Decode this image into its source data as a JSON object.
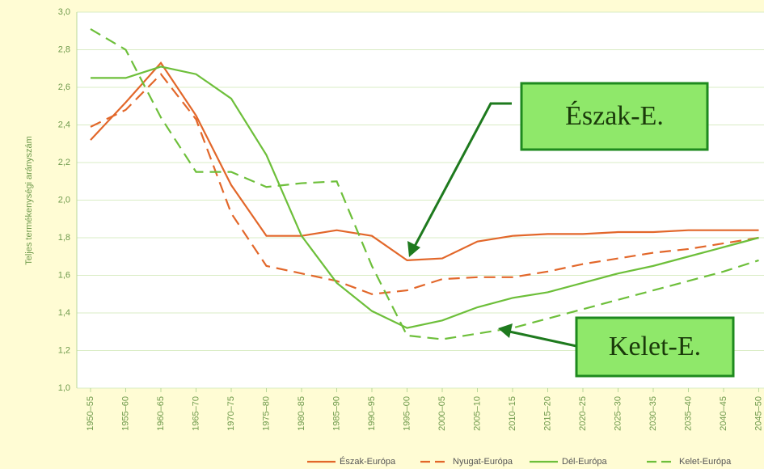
{
  "chart_data": {
    "type": "line",
    "y_label": "Teljes termékenységi arányszám",
    "categories": [
      "1950–55",
      "1955–60",
      "1960–65",
      "1965–70",
      "1970–75",
      "1975–80",
      "1980–85",
      "1985–90",
      "1990–95",
      "1995–00",
      "2000–05",
      "2005–10",
      "2010–15",
      "2015–20",
      "2020–25",
      "2025–30",
      "2030–35",
      "2035–40",
      "2040–45",
      "2045–50"
    ],
    "series": [
      {
        "name": "Észak-Európa",
        "color": "#e2672a",
        "style": "solid",
        "values": [
          2.32,
          2.52,
          2.73,
          2.45,
          2.08,
          1.81,
          1.81,
          1.84,
          1.81,
          1.68,
          1.69,
          1.78,
          1.81,
          1.82,
          1.82,
          1.83,
          1.83,
          1.84,
          1.84,
          1.84
        ]
      },
      {
        "name": "Nyugat-Európa",
        "color": "#e2672a",
        "style": "dashed",
        "values": [
          2.39,
          2.48,
          2.67,
          2.43,
          1.93,
          1.65,
          1.61,
          1.57,
          1.5,
          1.52,
          1.58,
          1.59,
          1.59,
          1.62,
          1.66,
          1.69,
          1.72,
          1.74,
          1.77,
          1.8
        ]
      },
      {
        "name": "Dél-Európa",
        "color": "#6dbf3a",
        "style": "solid",
        "values": [
          2.65,
          2.65,
          2.71,
          2.67,
          2.54,
          2.24,
          1.81,
          1.56,
          1.41,
          1.32,
          1.36,
          1.43,
          1.48,
          1.51,
          1.56,
          1.61,
          1.65,
          1.7,
          1.75,
          1.8
        ]
      },
      {
        "name": "Kelet-Európa",
        "color": "#6dbf3a",
        "style": "dashed",
        "values": [
          2.91,
          2.8,
          2.44,
          2.15,
          2.15,
          2.07,
          2.09,
          2.1,
          1.65,
          1.28,
          1.26,
          1.29,
          1.32,
          1.37,
          1.42,
          1.47,
          1.52,
          1.57,
          1.62,
          1.68
        ]
      }
    ],
    "ylim": [
      1.0,
      3.0
    ],
    "yticks": [
      {
        "value": 1.0,
        "label": "1,0"
      },
      {
        "value": 1.2,
        "label": "1,2"
      },
      {
        "value": 1.4,
        "label": "1,4"
      },
      {
        "value": 1.6,
        "label": "1,6"
      },
      {
        "value": 1.8,
        "label": "1,8"
      },
      {
        "value": 2.0,
        "label": "2,0"
      },
      {
        "value": 2.2,
        "label": "2,2"
      },
      {
        "value": 2.4,
        "label": "2,4"
      },
      {
        "value": 2.6,
        "label": "2,6"
      },
      {
        "value": 2.8,
        "label": "2,8"
      },
      {
        "value": 3.0,
        "label": "3,0"
      }
    ],
    "grid": true,
    "annotations": [
      "Észak-E.",
      "Kelet-E."
    ]
  }
}
